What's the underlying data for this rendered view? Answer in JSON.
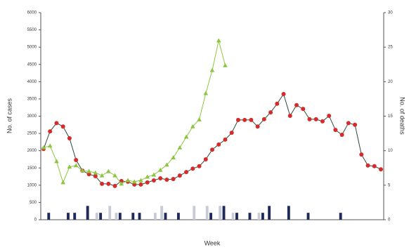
{
  "chart_data": {
    "type": "line",
    "xlabel": "Week",
    "ylabel": "No. of cases",
    "y2label": "No. of deaths",
    "categories": [
      null,
      null,
      null,
      null,
      null,
      null,
      null,
      null,
      null,
      null,
      null,
      null,
      null,
      null,
      null,
      null,
      null,
      null,
      null,
      null,
      null,
      null,
      null,
      null,
      null,
      null,
      null,
      null,
      null,
      null,
      null,
      null,
      null,
      null,
      null,
      null,
      null,
      null,
      null,
      null,
      null,
      null,
      null,
      null,
      null,
      null,
      null,
      null,
      null,
      null,
      null,
      null,
      null
    ],
    "ylim": [
      0,
      6000
    ],
    "yticks": [
      0,
      500,
      1000,
      1500,
      2000,
      2500,
      3000,
      3500,
      4000,
      4500,
      5000,
      5500,
      6000
    ],
    "y2lim": [
      0,
      30
    ],
    "y2ticks": [
      0,
      5,
      10,
      15,
      20,
      25,
      30
    ],
    "grid": false,
    "series": [
      {
        "type": "bar",
        "axis": "y2",
        "color": "#1f2a5c",
        "values": [
          0,
          1,
          0,
          0,
          1,
          1,
          0,
          2,
          0,
          1,
          0,
          0,
          1,
          0,
          1,
          1,
          0,
          0,
          0,
          1,
          0,
          1,
          0,
          0,
          0,
          0,
          1,
          0,
          2,
          0,
          1,
          0,
          1,
          0,
          1,
          2,
          0,
          0,
          2,
          0,
          0,
          1,
          0,
          0,
          0,
          0,
          1,
          0,
          0,
          0,
          0,
          0,
          0
        ]
      },
      {
        "type": "bar",
        "axis": "y2",
        "color": "#c8ccd8",
        "values": [
          0,
          0,
          0,
          0,
          0,
          0,
          0,
          0,
          1,
          0,
          2,
          1,
          0,
          0,
          0,
          0,
          0,
          1,
          2,
          0,
          0,
          0,
          0,
          2,
          0,
          2,
          0,
          2,
          0,
          1,
          0,
          0,
          0,
          1,
          0,
          0,
          0,
          0,
          0,
          0,
          0,
          0,
          0,
          0,
          0,
          0,
          0,
          0,
          0,
          0,
          0,
          0,
          0
        ]
      },
      {
        "type": "line",
        "marker": "circle",
        "color": "#d62b2b",
        "line_color": "#2e4a3a",
        "values": [
          2050,
          2560,
          2800,
          2700,
          2360,
          1730,
          1420,
          1320,
          1260,
          1040,
          1040,
          980,
          1120,
          1100,
          1020,
          1020,
          1080,
          1140,
          1200,
          1160,
          1180,
          1280,
          1380,
          1480,
          1550,
          1750,
          2030,
          2180,
          2320,
          2520,
          2890,
          2890,
          2890,
          2700,
          2910,
          3110,
          3360,
          3640,
          3010,
          3320,
          3210,
          2910,
          2910,
          2850,
          3010,
          2600,
          2460,
          2800,
          2750,
          1890,
          1570,
          1550,
          1460
        ]
      },
      {
        "type": "line",
        "marker": "triangle",
        "color": "#8cc63f",
        "line_color": "#8cc63f",
        "values": [
          2090,
          2140,
          1690,
          1080,
          1530,
          1570,
          1420,
          1400,
          1360,
          1280,
          1400,
          1280,
          1040,
          1140,
          1100,
          1140,
          1240,
          1300,
          1440,
          1590,
          1800,
          2090,
          2400,
          2700,
          2900,
          3660,
          4330,
          5190,
          4470,
          null,
          null,
          null,
          null,
          null,
          null,
          null,
          null,
          null,
          null,
          null,
          null,
          null,
          null,
          null,
          null,
          null,
          null,
          null,
          null,
          null,
          null,
          null,
          null
        ]
      }
    ]
  }
}
